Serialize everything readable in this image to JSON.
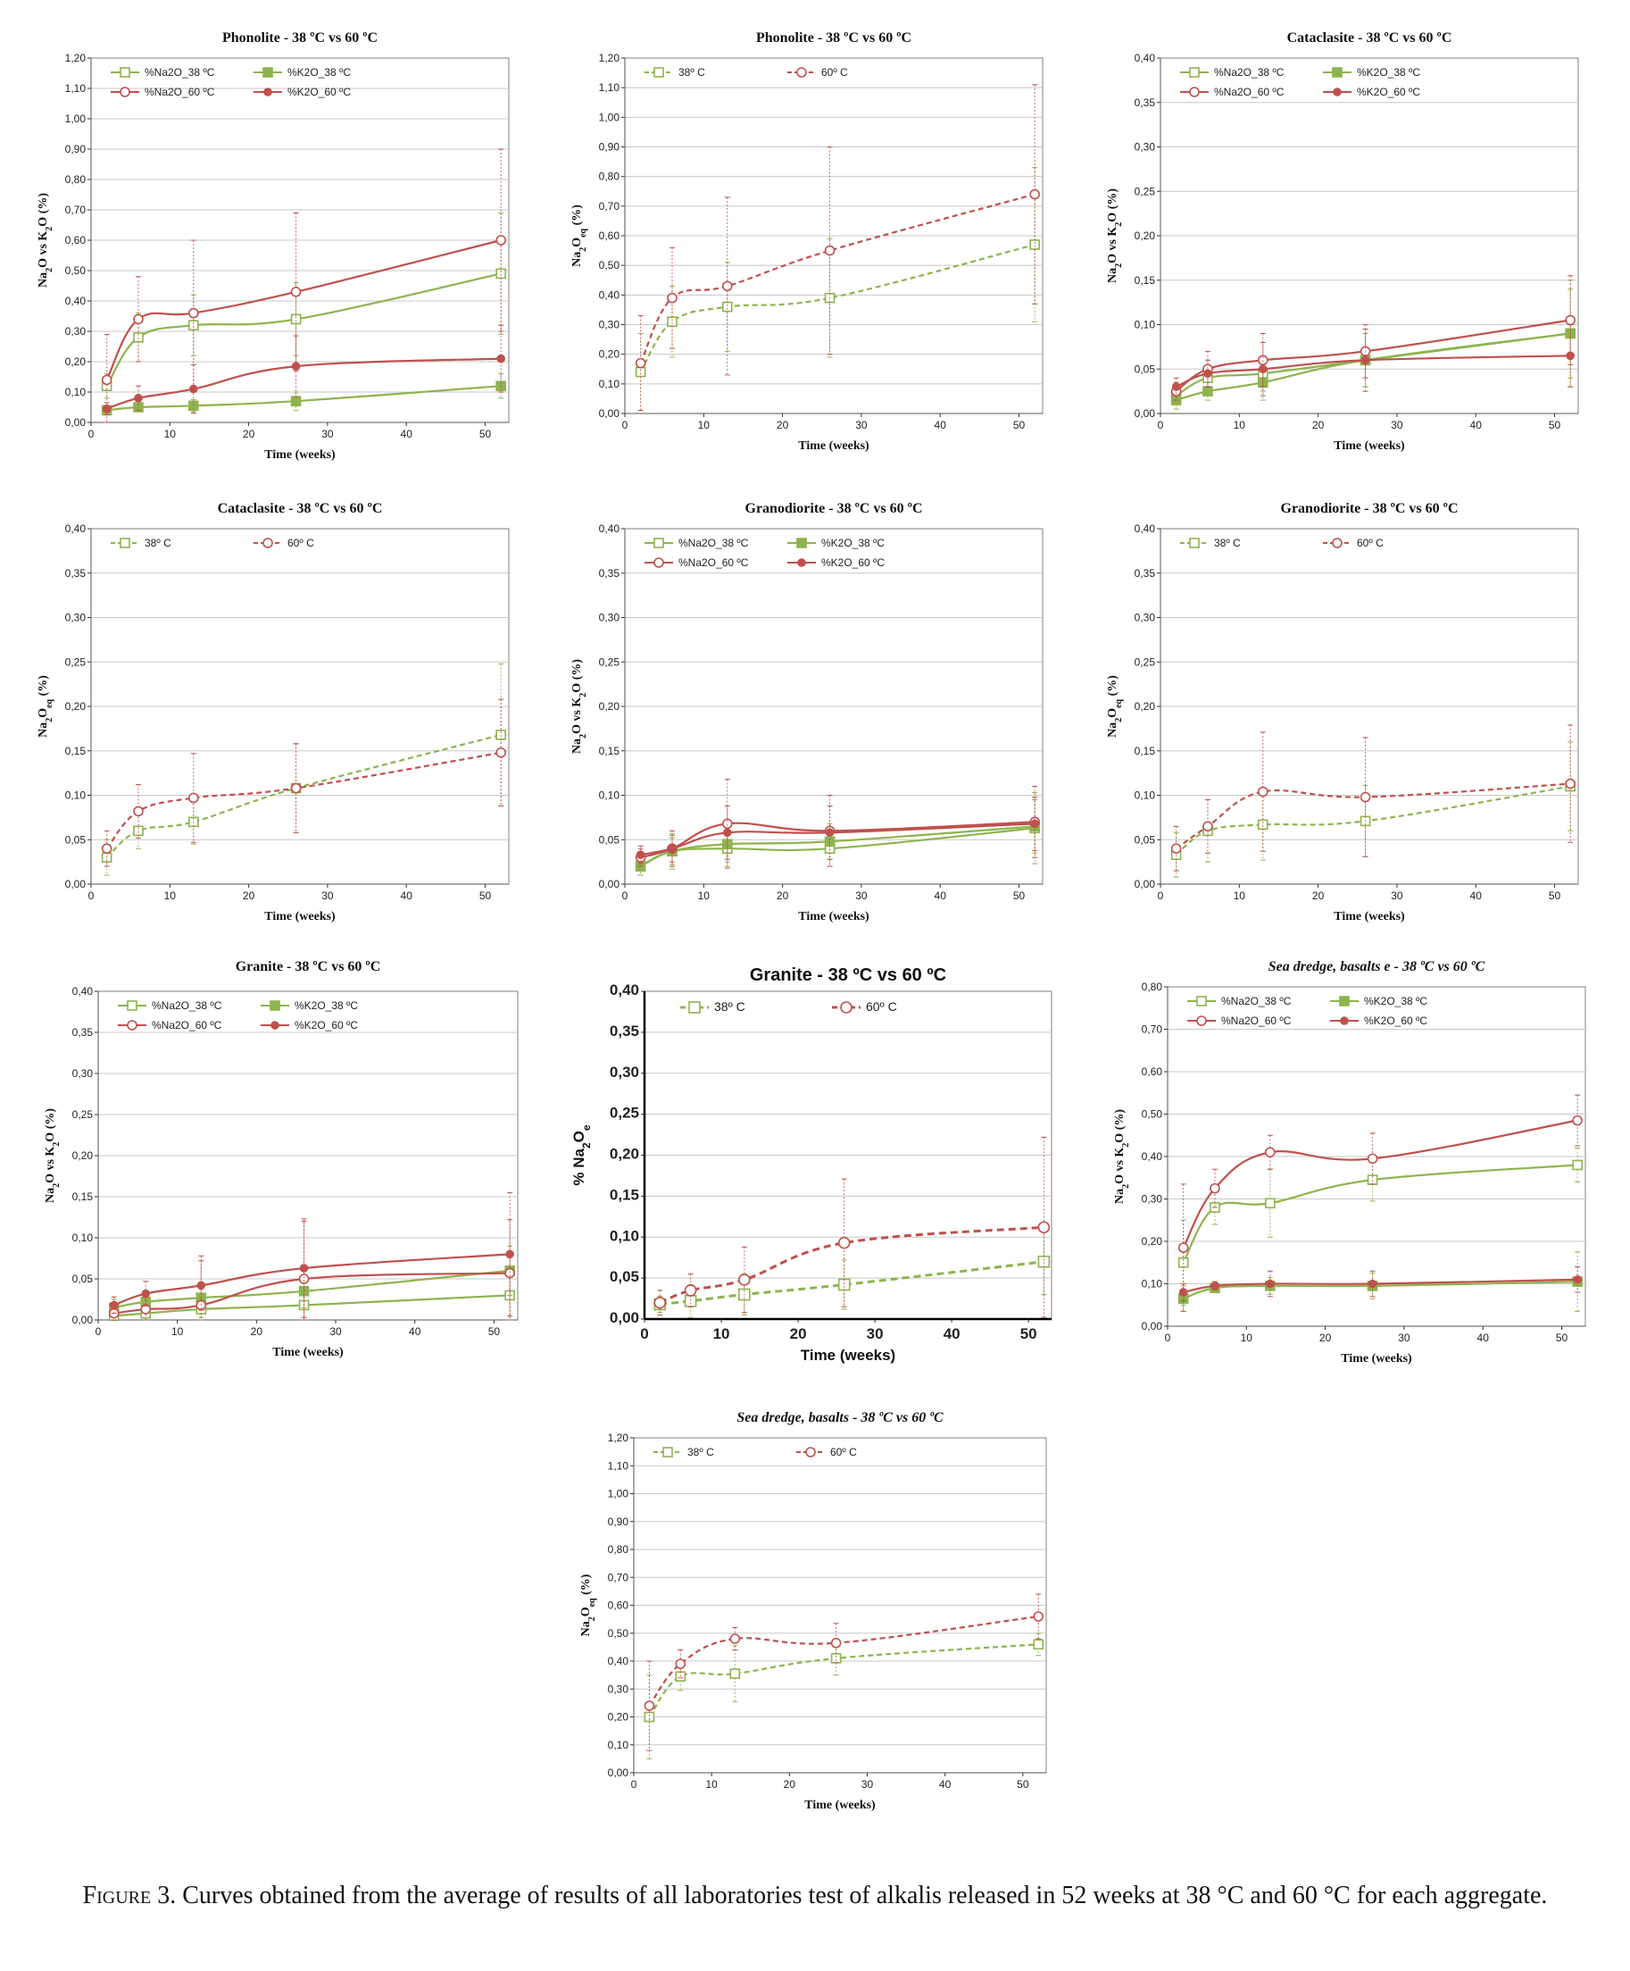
{
  "colors": {
    "green": "#8DB44F",
    "red": "#C0504D",
    "grid": "#C8C8C8",
    "axis": "#808080"
  },
  "caption": {
    "label": "Figure 3.",
    "text": "Curves obtained from the average of results of all laboratories test of alkalis released in 52 weeks at 38 °C and 60 °C for each aggregate."
  },
  "chart_data": [
    {
      "type": "line",
      "title": "Phonolite  - 38 ºC vs 60 ºC",
      "ylabel": "Na2O vs K2O (%)",
      "xlabel": "Time (weeks)",
      "xlim": [
        0,
        53
      ],
      "xticks": [
        0,
        10,
        20,
        30,
        40,
        50
      ],
      "ylim": [
        0,
        1.2
      ],
      "ystep": 0.1,
      "grid": true,
      "legend_position": "top-left",
      "series": [
        {
          "name": "%Na2O_38 ºC",
          "color": "#8DB44F",
          "marker": "square-open",
          "dash": false,
          "x": [
            2,
            6,
            13,
            26,
            52
          ],
          "y": [
            0.12,
            0.28,
            0.32,
            0.34,
            0.49
          ],
          "err": [
            0.04,
            0.08,
            0.1,
            0.12,
            0.2
          ]
        },
        {
          "name": "%K2O_38 ºC",
          "color": "#8DB44F",
          "marker": "square-filled",
          "dash": false,
          "x": [
            2,
            6,
            13,
            26,
            52
          ],
          "y": [
            0.04,
            0.05,
            0.055,
            0.07,
            0.12
          ],
          "err": [
            0.01,
            0.01,
            0.02,
            0.03,
            0.04
          ]
        },
        {
          "name": "%Na2O_60 ºC",
          "color": "#C0504D",
          "marker": "circle-open",
          "dash": false,
          "x": [
            2,
            6,
            13,
            26,
            52
          ],
          "y": [
            0.14,
            0.34,
            0.36,
            0.43,
            0.6
          ],
          "err": [
            0.15,
            0.14,
            0.24,
            0.26,
            0.3
          ]
        },
        {
          "name": "%K2O_60 ºC",
          "color": "#C0504D",
          "marker": "circle-filled",
          "dash": false,
          "x": [
            2,
            6,
            13,
            26,
            52
          ],
          "y": [
            0.045,
            0.08,
            0.11,
            0.185,
            0.21
          ],
          "err": [
            0.02,
            0.04,
            0.08,
            0.1,
            0.11
          ]
        }
      ]
    },
    {
      "type": "line",
      "title": "Phonolite  - 38 ºC vs 60 ºC",
      "ylabel": "Na2Oeq (%)",
      "xlabel": "Time (weeks)",
      "xlim": [
        0,
        53
      ],
      "xticks": [
        0,
        10,
        20,
        30,
        40,
        50
      ],
      "ylim": [
        0,
        1.2
      ],
      "ystep": 0.1,
      "grid": true,
      "legend_position": "top-left",
      "series": [
        {
          "name": "38º C",
          "color": "#8DB44F",
          "marker": "square-open",
          "dash": true,
          "x": [
            2,
            6,
            13,
            26,
            52
          ],
          "y": [
            0.14,
            0.31,
            0.36,
            0.39,
            0.57
          ],
          "err": [
            0.13,
            0.12,
            0.15,
            0.2,
            0.26
          ]
        },
        {
          "name": "60º C",
          "color": "#C0504D",
          "marker": "circle-open",
          "dash": true,
          "x": [
            2,
            6,
            13,
            26,
            52
          ],
          "y": [
            0.17,
            0.39,
            0.43,
            0.55,
            0.74
          ],
          "err": [
            0.16,
            0.17,
            0.3,
            0.35,
            0.37
          ]
        }
      ]
    },
    {
      "type": "line",
      "title": "Cataclasite - 38 ºC vs 60 ºC",
      "ylabel": "Na2O vs K2O (%)",
      "xlabel": "Time (weeks)",
      "xlim": [
        0,
        53
      ],
      "xticks": [
        0,
        10,
        20,
        30,
        40,
        50
      ],
      "ylim": [
        0,
        0.4
      ],
      "ystep": 0.05,
      "grid": true,
      "legend_position": "top-left",
      "series": [
        {
          "name": "%Na2O_38 ºC",
          "color": "#8DB44F",
          "marker": "square-open",
          "dash": false,
          "x": [
            2,
            6,
            13,
            26,
            52
          ],
          "y": [
            0.02,
            0.04,
            0.045,
            0.06,
            0.09
          ],
          "err": [
            0.01,
            0.015,
            0.02,
            0.03,
            0.06
          ]
        },
        {
          "name": "%K2O_38 ºC",
          "color": "#8DB44F",
          "marker": "square-filled",
          "dash": false,
          "x": [
            2,
            6,
            13,
            26,
            52
          ],
          "y": [
            0.015,
            0.025,
            0.035,
            0.06,
            0.09
          ],
          "err": [
            0.01,
            0.01,
            0.02,
            0.03,
            0.05
          ]
        },
        {
          "name": "%Na2O_60 ºC",
          "color": "#C0504D",
          "marker": "circle-open",
          "dash": false,
          "x": [
            2,
            6,
            13,
            26,
            52
          ],
          "y": [
            0.025,
            0.05,
            0.06,
            0.07,
            0.105
          ],
          "err": [
            0.01,
            0.02,
            0.03,
            0.03,
            0.05
          ]
        },
        {
          "name": "%K2O_60 ºC",
          "color": "#C0504D",
          "marker": "circle-filled",
          "dash": false,
          "x": [
            2,
            6,
            13,
            26,
            52
          ],
          "y": [
            0.03,
            0.045,
            0.05,
            0.06,
            0.065
          ],
          "err": [
            0.01,
            0.015,
            0.03,
            0.035,
            0.035
          ]
        }
      ]
    },
    {
      "type": "line",
      "title": "Cataclasite - 38 ºC vs 60 ºC",
      "ylabel": "Na2Oeq (%)",
      "xlabel": "Time (weeks)",
      "xlim": [
        0,
        53
      ],
      "xticks": [
        0,
        10,
        20,
        30,
        40,
        50
      ],
      "ylim": [
        0,
        0.4
      ],
      "ystep": 0.05,
      "grid": true,
      "legend_position": "top-left",
      "series": [
        {
          "name": "38º C",
          "color": "#8DB44F",
          "marker": "square-open",
          "dash": true,
          "x": [
            2,
            6,
            13,
            26,
            52
          ],
          "y": [
            0.03,
            0.06,
            0.07,
            0.108,
            0.168
          ],
          "err": [
            0.02,
            0.02,
            0.025,
            0.05,
            0.08
          ]
        },
        {
          "name": "60º C",
          "color": "#C0504D",
          "marker": "circle-open",
          "dash": true,
          "x": [
            2,
            6,
            13,
            26,
            52
          ],
          "y": [
            0.04,
            0.082,
            0.097,
            0.108,
            0.148
          ],
          "err": [
            0.02,
            0.03,
            0.05,
            0.05,
            0.06
          ]
        }
      ]
    },
    {
      "type": "line",
      "title": "Granodiorite  - 38 ºC vs 60 ºC",
      "ylabel": "Na2O vs K2O (%)",
      "xlabel": "Time (weeks)",
      "xlim": [
        0,
        53
      ],
      "xticks": [
        0,
        10,
        20,
        30,
        40,
        50
      ],
      "ylim": [
        0,
        0.4
      ],
      "ystep": 0.05,
      "grid": true,
      "legend_position": "top-left",
      "series": [
        {
          "name": "%Na2O_38 ºC",
          "color": "#8DB44F",
          "marker": "square-open",
          "dash": false,
          "x": [
            2,
            6,
            13,
            26,
            52
          ],
          "y": [
            0.02,
            0.037,
            0.04,
            0.04,
            0.063
          ],
          "err": [
            0.01,
            0.02,
            0.02,
            0.02,
            0.04
          ]
        },
        {
          "name": "%K2O_38 ºC",
          "color": "#8DB44F",
          "marker": "square-filled",
          "dash": false,
          "x": [
            2,
            6,
            13,
            26,
            52
          ],
          "y": [
            0.02,
            0.037,
            0.045,
            0.048,
            0.065
          ],
          "err": [
            0.01,
            0.015,
            0.02,
            0.02,
            0.03
          ]
        },
        {
          "name": "%Na2O_60 ºC",
          "color": "#C0504D",
          "marker": "circle-open",
          "dash": false,
          "x": [
            2,
            6,
            13,
            26,
            52
          ],
          "y": [
            0.03,
            0.04,
            0.068,
            0.06,
            0.07
          ],
          "err": [
            0.01,
            0.02,
            0.05,
            0.04,
            0.04
          ]
        },
        {
          "name": "%K2O_60 ºC",
          "color": "#C0504D",
          "marker": "circle-filled",
          "dash": false,
          "x": [
            2,
            6,
            13,
            26,
            52
          ],
          "y": [
            0.033,
            0.04,
            0.058,
            0.058,
            0.068
          ],
          "err": [
            0.01,
            0.015,
            0.03,
            0.03,
            0.03
          ]
        }
      ]
    },
    {
      "type": "line",
      "title": "Granodiorite  - 38 ºC vs 60 ºC",
      "ylabel": "Na2Oeq (%)",
      "xlabel": "Time (weeks)",
      "xlim": [
        0,
        53
      ],
      "xticks": [
        0,
        10,
        20,
        30,
        40,
        50
      ],
      "ylim": [
        0,
        0.4
      ],
      "ystep": 0.05,
      "grid": true,
      "legend_position": "top-left",
      "series": [
        {
          "name": "38º C",
          "color": "#8DB44F",
          "marker": "square-open",
          "dash": true,
          "x": [
            2,
            6,
            13,
            26,
            52
          ],
          "y": [
            0.033,
            0.06,
            0.067,
            0.071,
            0.11
          ],
          "err": [
            0.025,
            0.035,
            0.04,
            0.04,
            0.05
          ]
        },
        {
          "name": "60º C",
          "color": "#C0504D",
          "marker": "circle-open",
          "dash": true,
          "x": [
            2,
            6,
            13,
            26,
            52
          ],
          "y": [
            0.04,
            0.065,
            0.104,
            0.098,
            0.113
          ],
          "err": [
            0.025,
            0.03,
            0.067,
            0.067,
            0.066
          ]
        }
      ]
    },
    {
      "type": "line",
      "title": "Granite  - 38 ºC vs 60 ºC",
      "ylabel": "Na2O vs K2O (%)",
      "xlabel": "Time (weeks)",
      "xlim": [
        0,
        53
      ],
      "xticks": [
        0,
        10,
        20,
        30,
        40,
        50
      ],
      "ylim": [
        0,
        0.4
      ],
      "ystep": 0.05,
      "grid": true,
      "legend_position": "top-left",
      "series": [
        {
          "name": "%Na2O_38 ºC",
          "color": "#8DB44F",
          "marker": "square-open",
          "dash": false,
          "x": [
            2,
            6,
            13,
            26,
            52
          ],
          "y": [
            0.005,
            0.008,
            0.013,
            0.018,
            0.03
          ],
          "err": [
            0.005,
            0.01,
            0.01,
            0.015,
            0.03
          ]
        },
        {
          "name": "%K2O_38 ºC",
          "color": "#8DB44F",
          "marker": "square-filled",
          "dash": false,
          "x": [
            2,
            6,
            13,
            26,
            52
          ],
          "y": [
            0.015,
            0.022,
            0.027,
            0.035,
            0.06
          ],
          "err": [
            0.01,
            0.01,
            0.015,
            0.02,
            0.03
          ]
        },
        {
          "name": "%Na2O_60 ºC",
          "color": "#C0504D",
          "marker": "circle-open",
          "dash": false,
          "x": [
            2,
            6,
            13,
            26,
            52
          ],
          "y": [
            0.008,
            0.013,
            0.018,
            0.05,
            0.057
          ],
          "err": [
            0.01,
            0.02,
            0.06,
            0.07,
            0.065
          ]
        },
        {
          "name": "%K2O_60 ºC",
          "color": "#C0504D",
          "marker": "circle-filled",
          "dash": false,
          "x": [
            2,
            6,
            13,
            26,
            52
          ],
          "y": [
            0.018,
            0.032,
            0.042,
            0.063,
            0.08
          ],
          "err": [
            0.01,
            0.015,
            0.03,
            0.06,
            0.075
          ]
        }
      ]
    },
    {
      "type": "line",
      "title": "Granite - 38 ºC vs 60 ºC",
      "ylabel": "% Na2Oe",
      "xlabel": "Time (weeks)",
      "xlim": [
        0,
        53
      ],
      "xticks": [
        0,
        10,
        20,
        30,
        40,
        50
      ],
      "ylim": [
        0,
        0.4
      ],
      "ystep": 0.05,
      "grid": true,
      "legend_position": "top-left",
      "series": [
        {
          "name": "38º C",
          "color": "#8DB44F",
          "marker": "square-open",
          "dash": true,
          "x": [
            2,
            6,
            13,
            26,
            52
          ],
          "y": [
            0.018,
            0.022,
            0.03,
            0.042,
            0.07
          ],
          "err": [
            0.01,
            0.02,
            0.025,
            0.03,
            0.04
          ]
        },
        {
          "name": "60º C",
          "color": "#C0504D",
          "marker": "circle-open",
          "dash": true,
          "x": [
            2,
            6,
            13,
            26,
            52
          ],
          "y": [
            0.02,
            0.035,
            0.048,
            0.093,
            0.112
          ],
          "err": [
            0.015,
            0.02,
            0.04,
            0.078,
            0.11
          ]
        }
      ]
    },
    {
      "type": "line",
      "title": "Sea dredge, basalts e - 38 ºC vs 60 ºC",
      "ylabel": "Na2O vs K2O (%)",
      "xlabel": "Time (weeks)",
      "xlim": [
        0,
        53
      ],
      "xticks": [
        0,
        10,
        20,
        30,
        40,
        50
      ],
      "ylim": [
        0,
        0.8
      ],
      "ystep": 0.1,
      "grid": true,
      "legend_position": "top-left",
      "series": [
        {
          "name": "%Na2O_38 ºC",
          "color": "#8DB44F",
          "marker": "square-open",
          "dash": false,
          "x": [
            2,
            6,
            13,
            26,
            52
          ],
          "y": [
            0.15,
            0.28,
            0.29,
            0.345,
            0.38
          ],
          "err": [
            0.1,
            0.04,
            0.08,
            0.05,
            0.04
          ]
        },
        {
          "name": "%K2O_38 ºC",
          "color": "#8DB44F",
          "marker": "square-filled",
          "dash": false,
          "x": [
            2,
            6,
            13,
            26,
            52
          ],
          "y": [
            0.065,
            0.09,
            0.095,
            0.095,
            0.105
          ],
          "err": [
            0.03,
            0.01,
            0.02,
            0.03,
            0.07
          ]
        },
        {
          "name": "%Na2O_60 ºC",
          "color": "#C0504D",
          "marker": "circle-open",
          "dash": false,
          "x": [
            2,
            6,
            13,
            26,
            52
          ],
          "y": [
            0.185,
            0.325,
            0.41,
            0.395,
            0.485
          ],
          "err": [
            0.15,
            0.045,
            0.04,
            0.06,
            0.06
          ]
        },
        {
          "name": "%K2O_60 ºC",
          "color": "#C0504D",
          "marker": "circle-filled",
          "dash": false,
          "x": [
            2,
            6,
            13,
            26,
            52
          ],
          "y": [
            0.08,
            0.095,
            0.1,
            0.1,
            0.11
          ],
          "err": [
            0.02,
            0.01,
            0.03,
            0.03,
            0.03
          ]
        }
      ]
    },
    {
      "type": "line",
      "title": "Sea dredge, basalts  - 38 ºC vs 60 ºC",
      "ylabel": "Na2Oeq (%)",
      "xlabel": "Time (weeks)",
      "xlim": [
        0,
        53
      ],
      "xticks": [
        0,
        10,
        20,
        30,
        40,
        50
      ],
      "ylim": [
        0,
        1.2
      ],
      "ystep": 0.1,
      "grid": true,
      "legend_position": "top-left",
      "series": [
        {
          "name": "38º C",
          "color": "#8DB44F",
          "marker": "square-open",
          "dash": true,
          "x": [
            2,
            6,
            13,
            26,
            52
          ],
          "y": [
            0.2,
            0.345,
            0.355,
            0.41,
            0.46
          ],
          "err": [
            0.15,
            0.05,
            0.1,
            0.06,
            0.04
          ]
        },
        {
          "name": "60º C",
          "color": "#C0504D",
          "marker": "circle-open",
          "dash": true,
          "x": [
            2,
            6,
            13,
            26,
            52
          ],
          "y": [
            0.24,
            0.39,
            0.48,
            0.465,
            0.56
          ],
          "err": [
            0.16,
            0.05,
            0.04,
            0.07,
            0.08
          ]
        }
      ]
    }
  ]
}
